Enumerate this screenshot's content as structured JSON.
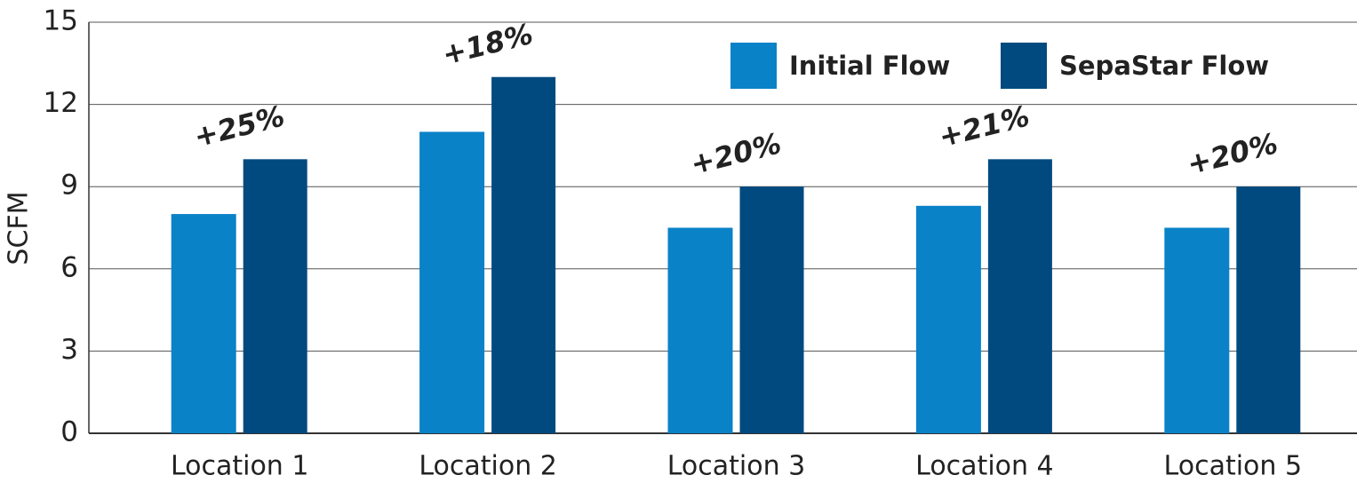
{
  "chart_data": {
    "type": "bar",
    "ylabel": "SCFM",
    "categories": [
      "Location 1",
      "Location 2",
      "Location 3",
      "Location 4",
      "Location 5"
    ],
    "series": [
      {
        "name": "Initial Flow",
        "color": "#0a82c8",
        "values": [
          8,
          11,
          7.5,
          8.3,
          7.5
        ]
      },
      {
        "name": "SepaStar Flow",
        "color": "#004a80",
        "values": [
          10,
          13,
          9,
          10,
          9
        ]
      }
    ],
    "annotations": [
      "+25%",
      "+18%",
      "+20%",
      "+21%",
      "+20%"
    ],
    "ylim": [
      0,
      15
    ],
    "yticks": [
      0,
      3,
      6,
      9,
      12,
      15
    ],
    "grid": true
  }
}
